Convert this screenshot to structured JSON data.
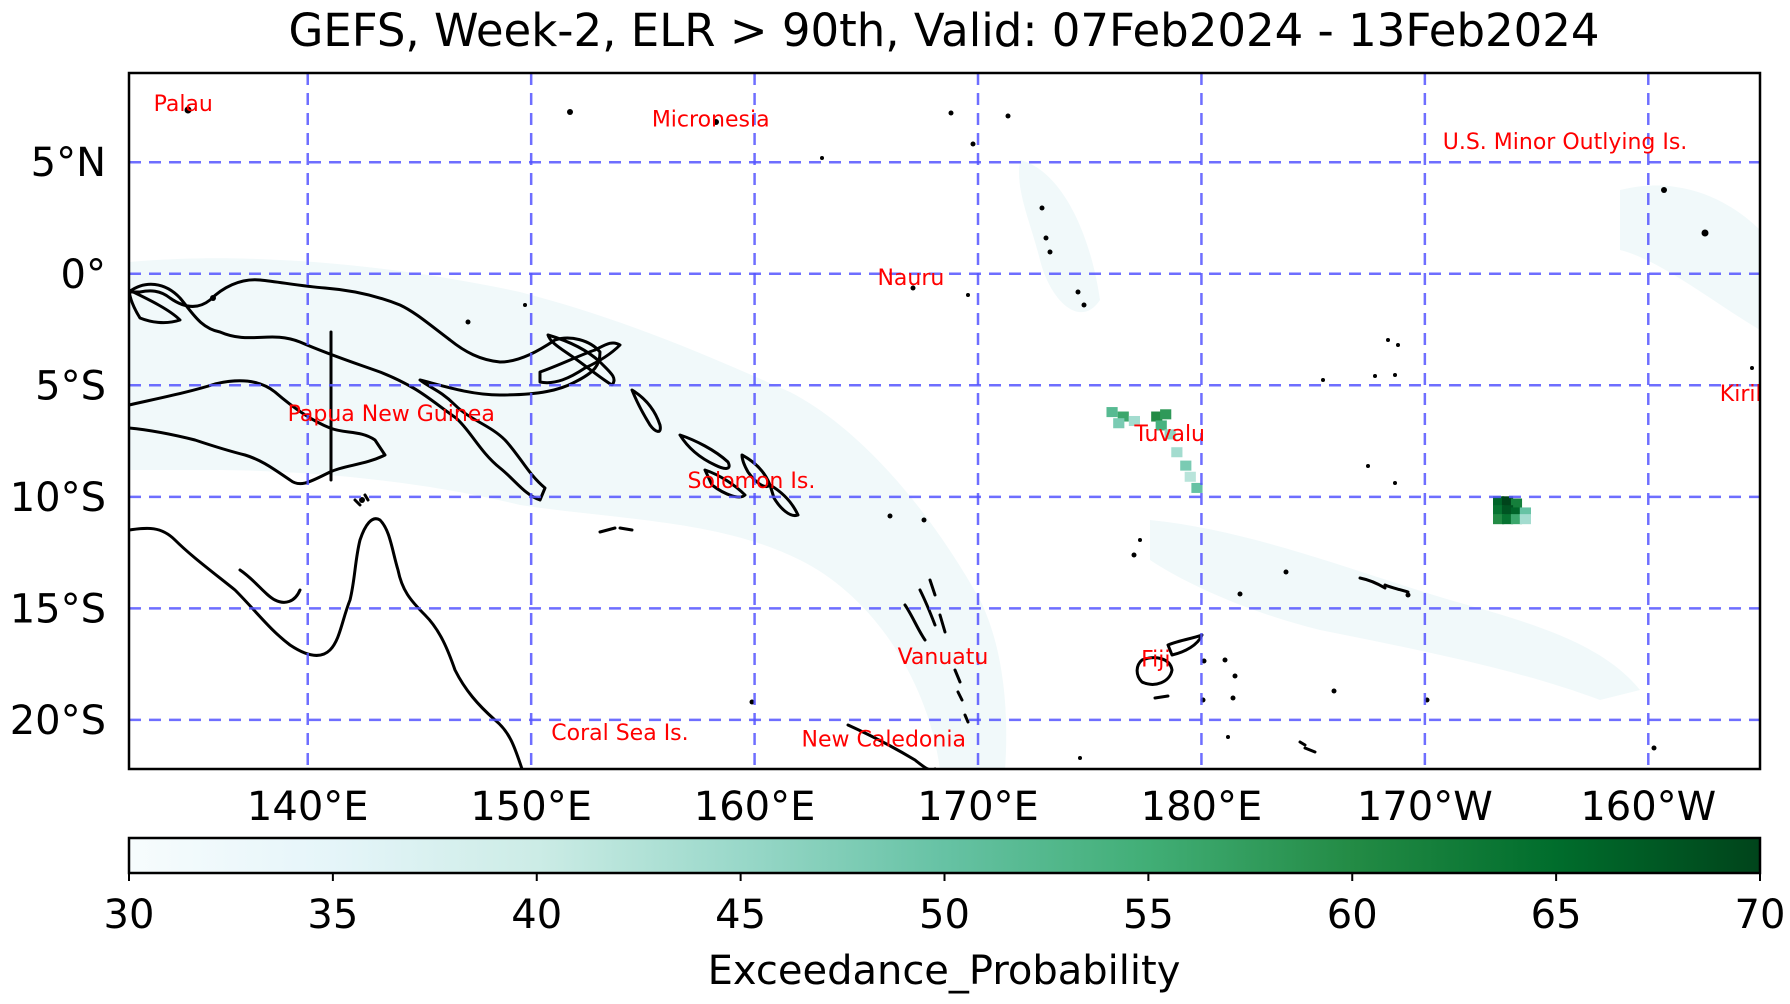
{
  "title": "GEFS, Week-2, ELR > 90th, Valid: 07Feb2024 - 13Feb2024",
  "map": {
    "lon_range": [
      132,
      205
    ],
    "lat_range": [
      -22.2,
      9.0
    ],
    "lon_ticks": [
      {
        "lon": 140,
        "label": "140°E"
      },
      {
        "lon": 150,
        "label": "150°E"
      },
      {
        "lon": 160,
        "label": "160°E"
      },
      {
        "lon": 170,
        "label": "170°E"
      },
      {
        "lon": 180,
        "label": "180°E"
      },
      {
        "lon": 190,
        "label": "170°W"
      },
      {
        "lon": 200,
        "label": "160°W"
      }
    ],
    "lat_ticks": [
      {
        "lat": 5,
        "label": "5°N"
      },
      {
        "lat": 0,
        "label": "0°"
      },
      {
        "lat": -5,
        "label": "5°S"
      },
      {
        "lat": -10,
        "label": "10°S"
      },
      {
        "lat": -15,
        "label": "15°S"
      },
      {
        "lat": -20,
        "label": "20°S"
      }
    ],
    "gridline_color": "#5555ff",
    "coastline_color": "#000000",
    "country_labels": [
      {
        "name": "Palau",
        "lon": 133.1,
        "lat": 7.3
      },
      {
        "name": "Micronesia",
        "lon": 155.4,
        "lat": 6.6
      },
      {
        "name": "U.S. Minor Outlying Is.",
        "lon": 190.8,
        "lat": 5.6
      },
      {
        "name": "Nauru",
        "lon": 165.5,
        "lat": -0.5
      },
      {
        "name": "Papua New Guinea",
        "lon": 139.1,
        "lat": -6.6
      },
      {
        "name": "Tuvalu",
        "lon": 177.0,
        "lat": -7.5
      },
      {
        "name": "Kiribati",
        "lon": 203.2,
        "lat": -5.7
      },
      {
        "name": "Solomon Is.",
        "lon": 157.0,
        "lat": -9.6
      },
      {
        "name": "Vanuatu",
        "lon": 166.4,
        "lat": -17.5
      },
      {
        "name": "Fiji",
        "lon": 177.3,
        "lat": -17.6
      },
      {
        "name": "Coral Sea Is.",
        "lon": 150.9,
        "lat": -20.9
      },
      {
        "name": "New Caledonia",
        "lon": 162.1,
        "lat": -21.2
      }
    ],
    "label_color": "#ff0000"
  },
  "probability_cells": [
    {
      "lon": 176.0,
      "lat": -6.2,
      "value": 52
    },
    {
      "lon": 176.5,
      "lat": -6.4,
      "value": 56
    },
    {
      "lon": 176.3,
      "lat": -6.7,
      "value": 48
    },
    {
      "lon": 177.0,
      "lat": -6.6,
      "value": 44
    },
    {
      "lon": 178.0,
      "lat": -6.4,
      "value": 60
    },
    {
      "lon": 178.4,
      "lat": -6.3,
      "value": 58
    },
    {
      "lon": 178.2,
      "lat": -6.8,
      "value": 54
    },
    {
      "lon": 178.6,
      "lat": -7.2,
      "value": 46
    },
    {
      "lon": 178.9,
      "lat": -8.0,
      "value": 44
    },
    {
      "lon": 179.3,
      "lat": -8.6,
      "value": 48
    },
    {
      "lon": 179.5,
      "lat": -9.1,
      "value": 42
    },
    {
      "lon": 179.8,
      "lat": -9.6,
      "value": 50
    },
    {
      "lon": 193.3,
      "lat": -10.2,
      "value": 66
    },
    {
      "lon": 193.7,
      "lat": -10.2,
      "value": 70
    },
    {
      "lon": 194.1,
      "lat": -10.3,
      "value": 62
    },
    {
      "lon": 193.3,
      "lat": -10.6,
      "value": 64
    },
    {
      "lon": 193.7,
      "lat": -10.6,
      "value": 68
    },
    {
      "lon": 194.1,
      "lat": -10.7,
      "value": 66
    },
    {
      "lon": 193.3,
      "lat": -11.0,
      "value": 60
    },
    {
      "lon": 193.7,
      "lat": -11.0,
      "value": 64
    },
    {
      "lon": 194.1,
      "lat": -11.0,
      "value": 56
    },
    {
      "lon": 194.5,
      "lat": -10.7,
      "value": 50
    },
    {
      "lon": 194.5,
      "lat": -11.0,
      "value": 44
    }
  ],
  "colorbar": {
    "min": 30,
    "max": 70,
    "ticks": [
      "30",
      "35",
      "40",
      "45",
      "50",
      "55",
      "60",
      "65",
      "70"
    ],
    "label": "Exceedance_Probability",
    "colors": [
      "#f7fcfd",
      "#e5f5f9",
      "#ccece6",
      "#99d8c9",
      "#66c2a4",
      "#41ae76",
      "#238b45",
      "#006d2c",
      "#00441b"
    ]
  }
}
